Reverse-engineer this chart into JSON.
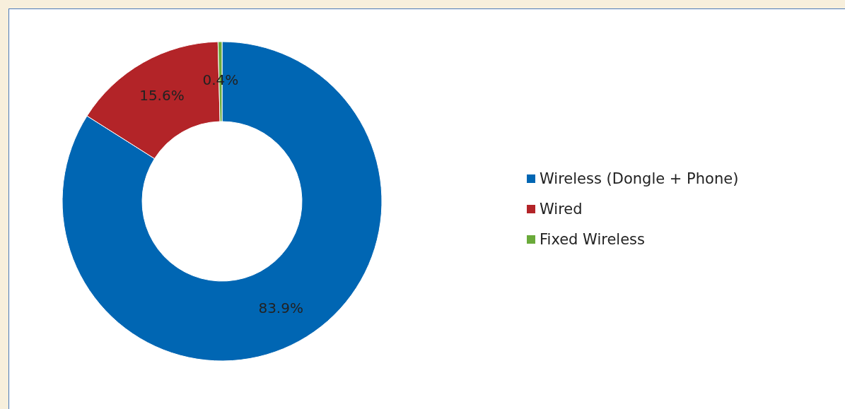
{
  "chart_data": {
    "type": "donut",
    "categories": [
      "Wireless (Dongle + Phone)",
      "Wired",
      "Fixed Wireless"
    ],
    "values": [
      83.9,
      15.6,
      0.4
    ],
    "colors": [
      "#0066b3",
      "#b32428",
      "#6aaa3a"
    ],
    "value_labels": [
      "83.9%",
      "15.6%",
      "0.4%"
    ],
    "legend": "right"
  }
}
